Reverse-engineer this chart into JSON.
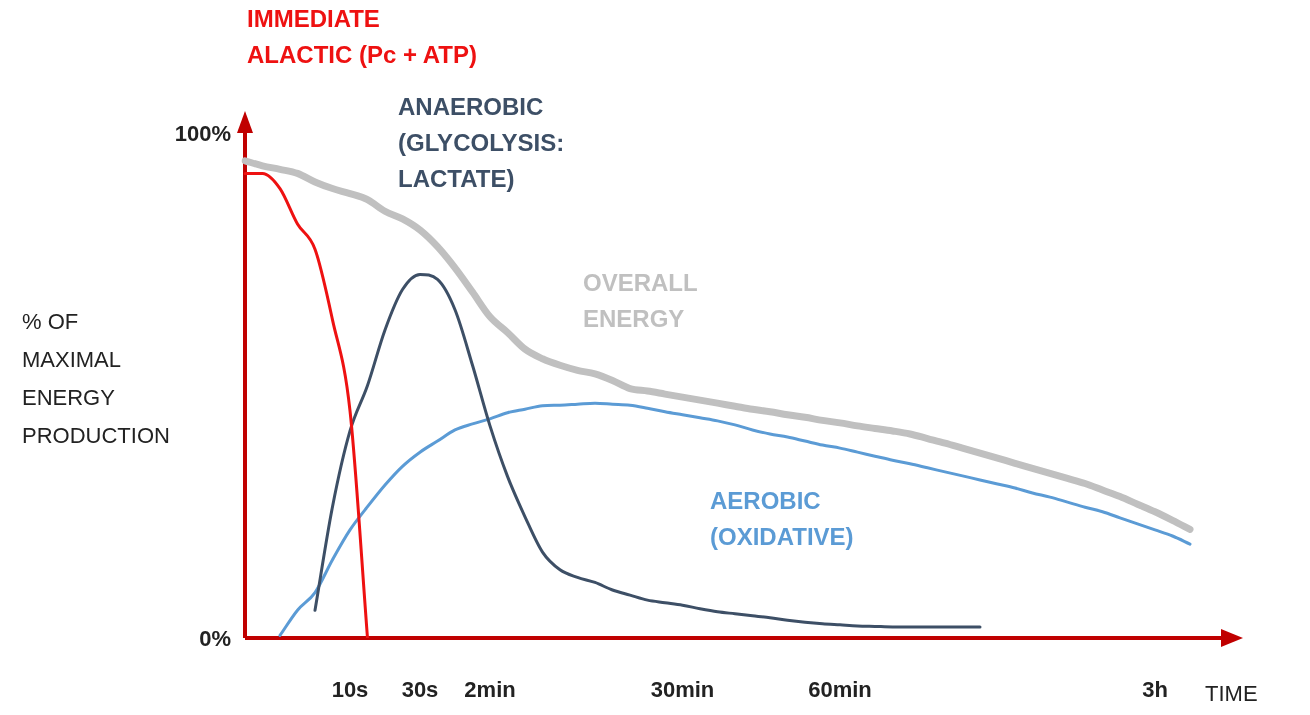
{
  "chart_data": {
    "type": "line",
    "xlabel": "TIME",
    "ylabel": "% OF MAXIMAL ENERGY PRODUCTION",
    "categories": [
      null,
      null,
      null,
      null,
      null,
      null,
      "10s",
      null,
      null,
      null,
      "30s",
      null,
      null,
      null,
      "2min",
      null,
      null,
      null,
      null,
      null,
      null,
      null,
      null,
      null,
      null,
      "30min",
      null,
      null,
      null,
      null,
      null,
      null,
      null,
      null,
      "60min",
      null,
      null,
      null,
      null,
      null,
      null,
      null,
      null,
      null,
      null,
      null,
      null,
      null,
      null,
      null,
      null,
      null,
      "3h",
      null,
      null,
      null,
      null
    ],
    "series": [
      {
        "name": "OVERALL ENERGY",
        "color": "#c0c0c0",
        "values": [
          94.5,
          93.5,
          92.8,
          92,
          90.3,
          89,
          88,
          86.8,
          84.5,
          83,
          80.8,
          77.5,
          73.3,
          68.5,
          63.6,
          60.5,
          57.2,
          55.3,
          54,
          53,
          52.3,
          51,
          49.4,
          48.9,
          48.3,
          47.7,
          47.1,
          46.5,
          45.9,
          45.3,
          44.8,
          44.2,
          43.7,
          43.1,
          42.6,
          42,
          41.5,
          41,
          40.4,
          39.5,
          38.6,
          37.6,
          36.6,
          35.6,
          34.6,
          33.6,
          32.6,
          31.6,
          30.6,
          29.3,
          28,
          26.5,
          25,
          23.3,
          21.5,
          null,
          null
        ]
      },
      {
        "name": "IMMEDIATE ALACTIC (Pc + ATP)",
        "color": "#ee1111",
        "values": [
          92,
          92,
          89,
          82,
          77,
          63,
          45,
          0,
          null,
          null,
          null,
          null,
          null,
          null,
          null,
          null,
          null,
          null,
          null,
          null,
          null,
          null,
          null,
          null,
          null,
          null,
          null,
          null,
          null,
          null,
          null,
          null,
          null,
          null,
          null,
          null,
          null,
          null,
          null,
          null,
          null,
          null,
          null,
          null,
          null,
          null,
          null,
          null,
          null,
          null,
          null,
          null,
          null,
          null,
          null,
          null,
          null
        ]
      },
      {
        "name": "ANAEROBIC (GLYCOLYSIS: LACTATE)",
        "color": "#3d4f66",
        "values": [
          null,
          null,
          null,
          null,
          5.5,
          26,
          41,
          50,
          61,
          69,
          72,
          71,
          65,
          54,
          42,
          32,
          24,
          17,
          13.5,
          12,
          11,
          9.5,
          8.5,
          7.5,
          7,
          6.5,
          5.8,
          5.2,
          4.8,
          4.4,
          4,
          3.5,
          3.1,
          2.8,
          2.6,
          2.4,
          2.3,
          2.2,
          2.2,
          2.2,
          2.2,
          2.2,
          2.2,
          null,
          null,
          null,
          null,
          null,
          null,
          null,
          null,
          null,
          null,
          null,
          null,
          null,
          null
        ]
      },
      {
        "name": "AEROBIC (OXIDATIVE)",
        "color": "#5b9bd5",
        "values": [
          null,
          null,
          0.5,
          5.5,
          9,
          15.5,
          21.4,
          26,
          30.3,
          34,
          36.8,
          39,
          41.2,
          42.4,
          43.4,
          44.6,
          45.3,
          46,
          46.1,
          46.3,
          46.5,
          46.3,
          46.1,
          45.5,
          44.8,
          44.2,
          43.6,
          43,
          42.2,
          41.2,
          40.4,
          39.8,
          39,
          38.2,
          37.6,
          36.8,
          36,
          35.2,
          34.5,
          33.7,
          32.9,
          32.1,
          31.3,
          30.5,
          29.7,
          28.7,
          27.9,
          26.9,
          25.9,
          25,
          23.8,
          22.6,
          21.4,
          20.2,
          18.6,
          null,
          null
        ]
      }
    ],
    "ylim": [
      0,
      100
    ],
    "yticks": [
      {
        "value": 0,
        "label": "0%"
      },
      {
        "value": 100,
        "label": "100%"
      }
    ],
    "marker": "none",
    "line_style": "solid"
  }
}
